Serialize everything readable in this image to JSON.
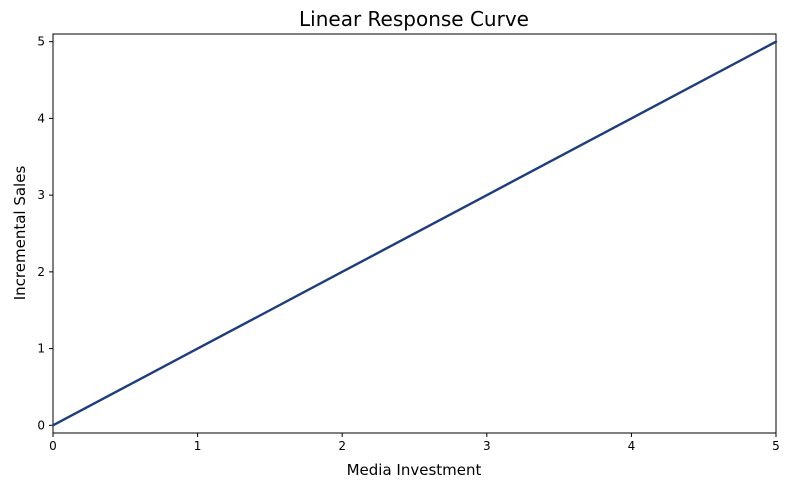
{
  "chart_data": {
    "type": "line",
    "title": "Linear Response Curve",
    "xlabel": "Media Investment",
    "ylabel": "Incremental Sales",
    "xlim": [
      0,
      5
    ],
    "ylim": [
      -0.1,
      5.1
    ],
    "xticks": [
      "0",
      "1",
      "2",
      "3",
      "4",
      "5"
    ],
    "yticks": [
      "0",
      "1",
      "2",
      "3",
      "4",
      "5"
    ],
    "grid": false,
    "legend": "none",
    "series": [
      {
        "color": "#1f3d7a",
        "x": [
          0,
          1,
          2,
          3,
          4,
          5
        ],
        "y": [
          0,
          1,
          2,
          3,
          4,
          5
        ]
      }
    ]
  }
}
